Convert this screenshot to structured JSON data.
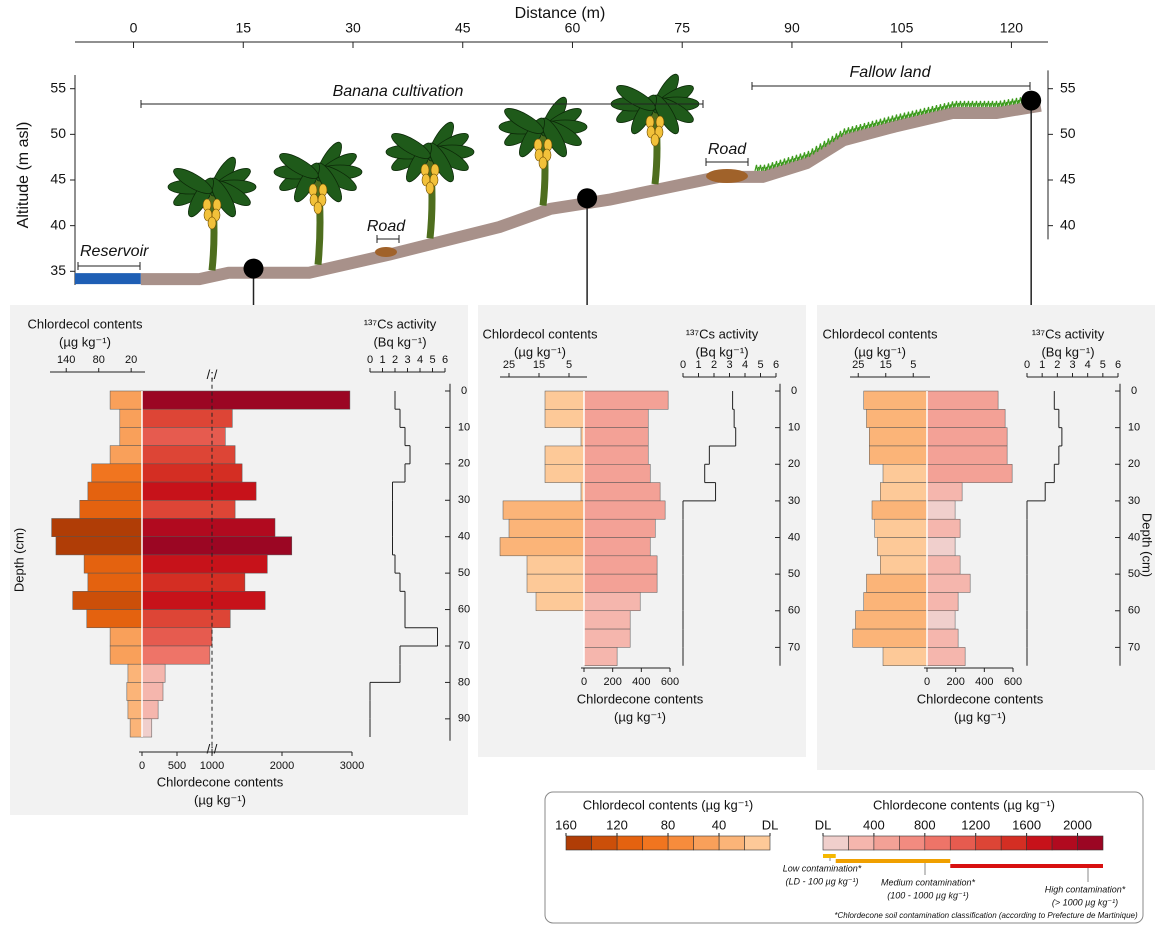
{
  "chart_data": [
    {
      "type": "profile",
      "xlabel": "Distance (m)",
      "ylabel": "Altitude (m asl)",
      "xlim": [
        -8,
        125
      ],
      "xticks": [
        0,
        15,
        30,
        45,
        60,
        75,
        90,
        105,
        120
      ],
      "ylim": [
        33.5,
        56.5
      ],
      "yticks": [
        35,
        40,
        45,
        50,
        55
      ],
      "y2lim": [
        38.5,
        57
      ],
      "y2ticks": [
        40,
        45,
        50,
        55
      ],
      "x": [
        1,
        9,
        13,
        24,
        35,
        50,
        57,
        65,
        80,
        86,
        92,
        97,
        104,
        112,
        118,
        124
      ],
      "values": [
        34.8,
        34.8,
        35.5,
        35.5,
        37.5,
        40.5,
        42.5,
        43.5,
        46,
        46,
        47.5,
        50,
        51.5,
        53,
        53,
        53.8
      ],
      "color": "#a8918a",
      "reservoir_color": "#1f5fb5",
      "sampling_points": {
        "x": [
          16.4,
          62,
          122.7
        ],
        "values": [
          35.3,
          43,
          53.7
        ],
        "color": "#000000"
      },
      "annotations": [
        "Reservoir",
        "Banana cultivation",
        "Road",
        "Road",
        "Fallow land"
      ]
    },
    {
      "type": "depth_profile",
      "ylabel": "Depth (cm)",
      "ylim": [
        -2,
        96
      ],
      "yticks": [
        0,
        10,
        20,
        30,
        40,
        50,
        60,
        70,
        80,
        90
      ],
      "depth_bins": [
        0,
        5,
        10,
        15,
        20,
        25,
        30,
        35,
        40,
        45,
        50,
        55,
        60,
        65,
        70,
        75,
        80,
        85,
        90,
        95
      ],
      "chlordecol_title": "Chlordecol contents",
      "chlordecol_unit": "(µg kg⁻¹)",
      "chlordecol_xlim": [
        0,
        170
      ],
      "chlordecol_xticks": [
        20,
        80,
        140
      ],
      "chlordecol": [
        59,
        41,
        41,
        59,
        93,
        100,
        115,
        167,
        159,
        107,
        100,
        128,
        102,
        59,
        59,
        26,
        28,
        26,
        22
      ],
      "chlordecone_title": "Chlordecone contents",
      "chlordecone_unit": "(µg kg⁻¹)",
      "chlordecone_xlim": [
        0,
        3000
      ],
      "chlordecone_xticks": [
        0,
        500,
        1000,
        2000,
        3000
      ],
      "chlordecone": [
        2970,
        1290,
        1190,
        1330,
        1430,
        1630,
        1330,
        1900,
        2140,
        1790,
        1470,
        1760,
        1260,
        1000,
        970,
        330,
        300,
        230,
        140
      ],
      "axis_break": {
        "value": 1000,
        "label": "/;/"
      },
      "cs_title": "¹³⁷Cs activity",
      "cs_unit": "(Bq kg⁻¹)",
      "cs_xlim": [
        0,
        6
      ],
      "cs_xticks": [
        0,
        1,
        2,
        3,
        4,
        5,
        6
      ],
      "cs_activity": [
        2.0,
        2.4,
        2.8,
        3.2,
        2.8,
        1.8,
        1.8,
        1.8,
        1.8,
        2.0,
        2.4,
        2.8,
        2.8,
        5.4,
        2.4,
        2.4,
        0,
        0,
        0
      ]
    },
    {
      "type": "depth_profile",
      "ylim": [
        -2,
        75
      ],
      "yticks": [
        0,
        10,
        20,
        30,
        40,
        50,
        60,
        70
      ],
      "depth_bins": [
        0,
        5,
        10,
        15,
        20,
        25,
        30,
        35,
        40,
        45,
        50,
        55,
        60,
        65,
        70,
        75
      ],
      "chlordecol_title": "Chlordecol contents",
      "chlordecol_unit": "(µg kg⁻¹)",
      "chlordecol_xlim": [
        0,
        28
      ],
      "chlordecol_xticks": [
        25,
        15,
        5
      ],
      "chlordecol": [
        13,
        13,
        1,
        13,
        13,
        1,
        27,
        25,
        28,
        19,
        19,
        16,
        0,
        0,
        0
      ],
      "chlordecone_title": "Chlordecone contents",
      "chlordecone_unit": "(µg kg⁻¹)",
      "chlordecone_xlim": [
        0,
        600
      ],
      "chlordecone_xticks": [
        0,
        200,
        400,
        600
      ],
      "chlordecone": [
        587,
        448,
        448,
        448,
        462,
        531,
        566,
        497,
        462,
        510,
        510,
        392,
        322,
        322,
        231
      ],
      "cs_title": "¹³⁷Cs activity",
      "cs_unit": "(Bq kg⁻¹)",
      "cs_xlim": [
        0,
        6
      ],
      "cs_xticks": [
        0,
        1,
        2,
        3,
        4,
        5,
        6
      ],
      "cs_activity": [
        3.2,
        3.3,
        3.4,
        1.7,
        1.4,
        2.1,
        0,
        0,
        0,
        0,
        0,
        0,
        0,
        0,
        0
      ]
    },
    {
      "type": "depth_profile",
      "ylabel": "Depth (cm)",
      "ylim": [
        -2,
        75
      ],
      "yticks": [
        0,
        10,
        20,
        30,
        40,
        50,
        60,
        70
      ],
      "depth_bins": [
        0,
        5,
        10,
        15,
        20,
        25,
        30,
        35,
        40,
        45,
        50,
        55,
        60,
        65,
        70,
        75
      ],
      "chlordecol_title": "Chlordecol contents",
      "chlordecol_unit": "(µg kg⁻¹)",
      "chlordecol_xlim": [
        0,
        28
      ],
      "chlordecol_xticks": [
        25,
        15,
        5
      ],
      "chlordecol": [
        23,
        22,
        21,
        21,
        16,
        17,
        20,
        19,
        18,
        17,
        22,
        23,
        26,
        27,
        16
      ],
      "chlordecone_title": "Chlordecone contents",
      "chlordecone_unit": "(µg kg⁻¹)",
      "chlordecone_xlim": [
        0,
        600
      ],
      "chlordecone_xticks": [
        0,
        200,
        400,
        600
      ],
      "chlordecone": [
        496,
        545,
        559,
        559,
        594,
        245,
        196,
        231,
        196,
        231,
        301,
        217,
        196,
        217,
        266
      ],
      "cs_title": "¹³⁷Cs activity",
      "cs_unit": "(Bq kg⁻¹)",
      "cs_xlim": [
        0,
        6
      ],
      "cs_xticks": [
        0,
        1,
        2,
        3,
        4,
        5,
        6
      ],
      "cs_activity": [
        1.8,
        2.1,
        2.3,
        2.1,
        1.8,
        1.2,
        0,
        0,
        0,
        0,
        0,
        0,
        0,
        0,
        0
      ]
    }
  ],
  "legend": {
    "chlordecol": {
      "title": "Chlordecol contents (µg kg⁻¹)",
      "lim": [
        0,
        160
      ],
      "colors": [
        "#fdc998",
        "#fbb478",
        "#f9a05a",
        "#f78c3c",
        "#f1751f",
        "#e4620f",
        "#cc4f09",
        "#b03d06"
      ],
      "ticks": [
        160,
        120,
        80,
        40,
        {
          "value": 0,
          "label": "DL"
        }
      ]
    },
    "chlordecone": {
      "title": "Chlordecone contents (µg kg⁻¹)",
      "lim": [
        0,
        2200
      ],
      "colors": [
        "#f0cfcc",
        "#f5b6ad",
        "#f3a196",
        "#f28b80",
        "#ee7468",
        "#e65b4f",
        "#dd4536",
        "#d42e23",
        "#c7121a",
        "#b10a1f",
        "#9b0623"
      ],
      "ticks": [
        {
          "value": 0,
          "label": "DL"
        },
        400,
        800,
        1200,
        1600,
        2000
      ]
    },
    "classes": [
      {
        "name": "Low contamination*",
        "range": "(LD - 100 µg kg⁻¹)",
        "from": 0,
        "to": 100,
        "color": "#f5b800"
      },
      {
        "name": "Medium contamination*",
        "range": "(100 - 1000 µg kg⁻¹)",
        "from": 100,
        "to": 1000,
        "color": "#f0a000"
      },
      {
        "name": "High contamination*",
        "range": "(> 1000 µg kg⁻¹)",
        "from": 1000,
        "color": "#d81010"
      }
    ],
    "footnote": "*Chlordecone soil contamination classification (according to Prefecture de Martinique)"
  }
}
